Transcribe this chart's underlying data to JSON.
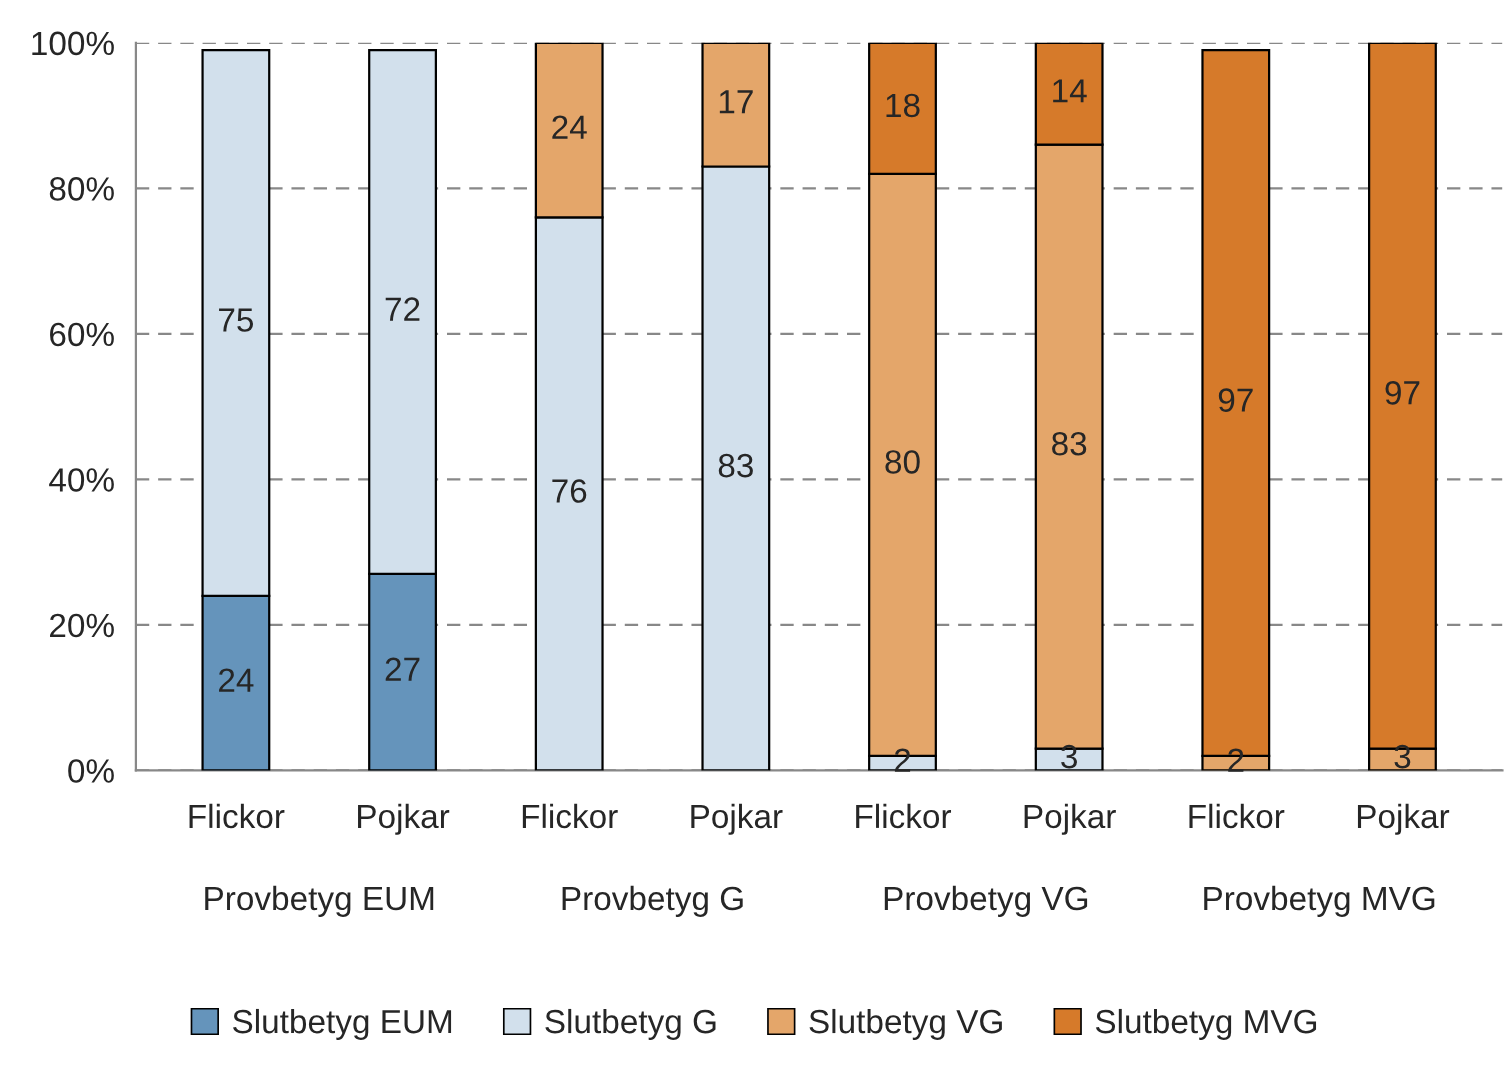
{
  "chart_data": {
    "type": "bar",
    "stacked": true,
    "categories": [
      "Flickor",
      "Pojkar",
      "Flickor",
      "Pojkar",
      "Flickor",
      "Pojkar",
      "Flickor",
      "Pojkar"
    ],
    "series": [
      {
        "name": "Slutbetyg EUM",
        "color": "#6594bb",
        "values": [
          24,
          27,
          null,
          null,
          null,
          null,
          null,
          null
        ]
      },
      {
        "name": "Slutbetyg G",
        "color": "#d2e0ec",
        "values": [
          75,
          72,
          76,
          83,
          2,
          3,
          null,
          null
        ]
      },
      {
        "name": "Slutbetyg VG",
        "color": "#e4a66a",
        "values": [
          null,
          null,
          24,
          17,
          80,
          83,
          2,
          3
        ]
      },
      {
        "name": "Slutbetyg MVG",
        "color": "#d67a2a",
        "values": [
          null,
          null,
          null,
          null,
          18,
          14,
          97,
          97
        ]
      }
    ],
    "annotations": [
      "Provbetyg EUM",
      "Provbetyg G",
      "Provbetyg VG",
      "Provbetyg MVG"
    ],
    "ylim": [
      0,
      100
    ],
    "yticks": [
      {
        "value": 0,
        "label": "0%"
      },
      {
        "value": 20,
        "label": "20%"
      },
      {
        "value": 40,
        "label": "40%"
      },
      {
        "value": 60,
        "label": "60%"
      },
      {
        "value": 80,
        "label": "80%"
      },
      {
        "value": 100,
        "label": "100%"
      }
    ],
    "grid": "y",
    "legend": "bottom",
    "data_labels": true
  }
}
